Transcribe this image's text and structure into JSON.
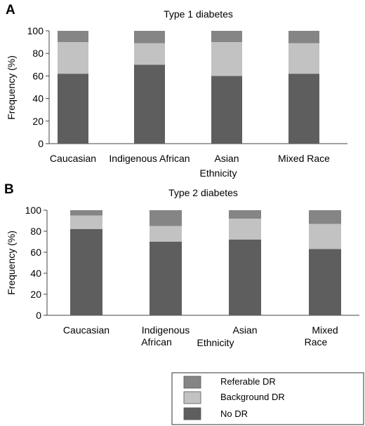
{
  "chart_data": [
    {
      "type": "bar",
      "stacked": true,
      "panel": "A",
      "title": "Type 1 diabetes",
      "xlabel": "Ethnicity",
      "ylabel": "Frequency (%)",
      "ylim": [
        0,
        100
      ],
      "yticks": [
        0,
        20,
        40,
        60,
        80,
        100
      ],
      "grid": false,
      "categories": [
        "Caucasian",
        "Indigenous African",
        "Asian",
        "Mixed Race"
      ],
      "series": [
        {
          "name": "No DR",
          "values": [
            62,
            70,
            60,
            62
          ]
        },
        {
          "name": "Background DR",
          "values": [
            28,
            19,
            30,
            27
          ]
        },
        {
          "name": "Referable DR",
          "values": [
            10,
            11,
            10,
            11
          ]
        }
      ]
    },
    {
      "type": "bar",
      "stacked": true,
      "panel": "B",
      "title": "Type 2 diabetes",
      "xlabel": "Ethnicity",
      "ylabel": "Frequency (%)",
      "ylim": [
        0,
        100
      ],
      "yticks": [
        0,
        20,
        40,
        60,
        80,
        100
      ],
      "grid": false,
      "categories": [
        "Caucasian",
        "Indigenous African",
        "Asian",
        "Mixed Race"
      ],
      "series": [
        {
          "name": "No DR",
          "values": [
            82,
            70,
            72,
            63
          ]
        },
        {
          "name": "Background DR",
          "values": [
            13,
            15,
            20,
            24
          ]
        },
        {
          "name": "Referable DR",
          "values": [
            5,
            15,
            8,
            13
          ]
        }
      ]
    }
  ],
  "legend": {
    "placement": "bottom-right",
    "items": [
      {
        "label": "Referable DR",
        "color": "#858585"
      },
      {
        "label": "Background DR",
        "color": "#c2c2c2"
      },
      {
        "label": "No DR",
        "color": "#5e5e5e"
      }
    ]
  },
  "series_colors": {
    "No DR": "#5e5e5e",
    "Background DR": "#c2c2c2",
    "Referable DR": "#858585"
  }
}
